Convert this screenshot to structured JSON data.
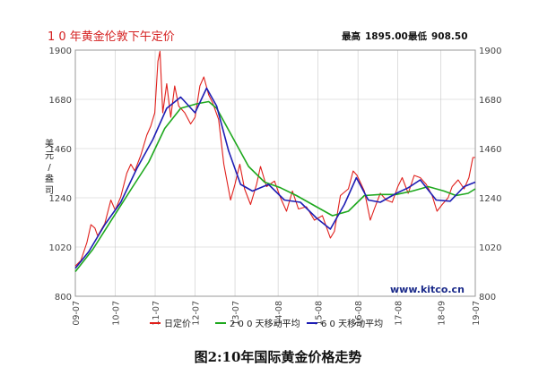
{
  "caption": "图2:10年国际黄金价格走势",
  "chart_data": {
    "type": "line",
    "title": "1 0 年黄金伦敦下午定价",
    "stats": {
      "high_label": "最高",
      "high_value": "1895.00",
      "low_label": "最低",
      "low_value": "908.50"
    },
    "ylabel": "美元/盎司",
    "watermark": "www.kitco.cn",
    "ylim": [
      800,
      1900
    ],
    "y_ticks": [
      800,
      1020,
      1240,
      1460,
      1680,
      1900
    ],
    "xlim": [
      2009.56,
      2019.58
    ],
    "x_tick_labels": [
      "09-07",
      "10-07",
      "11-07",
      "12-07",
      "13-07",
      "14-08",
      "15-08",
      "16-08",
      "17-08",
      "18-09",
      "19-07"
    ],
    "x_tick_positions": [
      2009.56,
      2010.56,
      2011.56,
      2012.56,
      2013.56,
      2014.64,
      2015.64,
      2016.64,
      2017.64,
      2018.72,
      2019.58
    ],
    "grid": true,
    "legend_position": "bottom",
    "series": [
      {
        "name": "日定价",
        "color": "#e0201c",
        "points": [
          [
            2009.56,
            935
          ],
          [
            2009.7,
            960
          ],
          [
            2009.85,
            1040
          ],
          [
            2009.95,
            1120
          ],
          [
            2010.05,
            1105
          ],
          [
            2010.12,
            1070
          ],
          [
            2010.3,
            1125
          ],
          [
            2010.45,
            1230
          ],
          [
            2010.56,
            1185
          ],
          [
            2010.7,
            1245
          ],
          [
            2010.85,
            1350
          ],
          [
            2010.95,
            1390
          ],
          [
            2011.05,
            1360
          ],
          [
            2011.2,
            1430
          ],
          [
            2011.35,
            1520
          ],
          [
            2011.45,
            1560
          ],
          [
            2011.55,
            1620
          ],
          [
            2011.63,
            1850
          ],
          [
            2011.68,
            1895
          ],
          [
            2011.75,
            1620
          ],
          [
            2011.85,
            1750
          ],
          [
            2011.95,
            1600
          ],
          [
            2012.05,
            1740
          ],
          [
            2012.15,
            1650
          ],
          [
            2012.3,
            1620
          ],
          [
            2012.45,
            1570
          ],
          [
            2012.56,
            1600
          ],
          [
            2012.68,
            1740
          ],
          [
            2012.78,
            1780
          ],
          [
            2012.9,
            1700
          ],
          [
            2013.0,
            1665
          ],
          [
            2013.15,
            1590
          ],
          [
            2013.28,
            1390
          ],
          [
            2013.45,
            1230
          ],
          [
            2013.56,
            1300
          ],
          [
            2013.68,
            1390
          ],
          [
            2013.8,
            1280
          ],
          [
            2013.95,
            1210
          ],
          [
            2014.1,
            1300
          ],
          [
            2014.2,
            1380
          ],
          [
            2014.35,
            1290
          ],
          [
            2014.55,
            1315
          ],
          [
            2014.7,
            1240
          ],
          [
            2014.85,
            1180
          ],
          [
            2015.0,
            1270
          ],
          [
            2015.15,
            1190
          ],
          [
            2015.35,
            1200
          ],
          [
            2015.55,
            1140
          ],
          [
            2015.75,
            1160
          ],
          [
            2015.95,
            1060
          ],
          [
            2016.05,
            1090
          ],
          [
            2016.2,
            1250
          ],
          [
            2016.4,
            1280
          ],
          [
            2016.52,
            1360
          ],
          [
            2016.62,
            1340
          ],
          [
            2016.8,
            1270
          ],
          [
            2016.95,
            1140
          ],
          [
            2017.05,
            1190
          ],
          [
            2017.2,
            1260
          ],
          [
            2017.35,
            1230
          ],
          [
            2017.5,
            1220
          ],
          [
            2017.64,
            1290
          ],
          [
            2017.75,
            1330
          ],
          [
            2017.9,
            1260
          ],
          [
            2018.05,
            1340
          ],
          [
            2018.2,
            1330
          ],
          [
            2018.35,
            1300
          ],
          [
            2018.5,
            1250
          ],
          [
            2018.62,
            1180
          ],
          [
            2018.75,
            1210
          ],
          [
            2018.9,
            1240
          ],
          [
            2019.0,
            1290
          ],
          [
            2019.15,
            1320
          ],
          [
            2019.3,
            1280
          ],
          [
            2019.42,
            1330
          ],
          [
            2019.52,
            1420
          ],
          [
            2019.58,
            1420
          ]
        ]
      },
      {
        "name": "2 0 0 天移动平均",
        "color": "#1ea81e",
        "points": [
          [
            2009.56,
            910
          ],
          [
            2010.0,
            1010
          ],
          [
            2010.5,
            1150
          ],
          [
            2011.0,
            1290
          ],
          [
            2011.4,
            1400
          ],
          [
            2011.8,
            1550
          ],
          [
            2012.2,
            1640
          ],
          [
            2012.6,
            1660
          ],
          [
            2012.9,
            1670
          ],
          [
            2013.1,
            1640
          ],
          [
            2013.5,
            1510
          ],
          [
            2013.9,
            1380
          ],
          [
            2014.3,
            1310
          ],
          [
            2014.7,
            1285
          ],
          [
            2015.1,
            1250
          ],
          [
            2015.6,
            1200
          ],
          [
            2016.0,
            1160
          ],
          [
            2016.4,
            1180
          ],
          [
            2016.8,
            1250
          ],
          [
            2017.2,
            1255
          ],
          [
            2017.6,
            1255
          ],
          [
            2018.0,
            1270
          ],
          [
            2018.4,
            1290
          ],
          [
            2018.8,
            1270
          ],
          [
            2019.1,
            1250
          ],
          [
            2019.4,
            1260
          ],
          [
            2019.58,
            1280
          ]
        ]
      },
      {
        "name": "6 0 天移动平均",
        "color": "#1e1eb4",
        "points": [
          [
            2009.56,
            925
          ],
          [
            2009.9,
            1000
          ],
          [
            2010.3,
            1120
          ],
          [
            2010.7,
            1220
          ],
          [
            2011.1,
            1370
          ],
          [
            2011.5,
            1500
          ],
          [
            2011.85,
            1640
          ],
          [
            2012.2,
            1690
          ],
          [
            2012.56,
            1620
          ],
          [
            2012.85,
            1730
          ],
          [
            2013.1,
            1650
          ],
          [
            2013.4,
            1450
          ],
          [
            2013.7,
            1300
          ],
          [
            2014.0,
            1270
          ],
          [
            2014.4,
            1300
          ],
          [
            2014.8,
            1230
          ],
          [
            2015.2,
            1220
          ],
          [
            2015.6,
            1150
          ],
          [
            2015.95,
            1100
          ],
          [
            2016.3,
            1210
          ],
          [
            2016.6,
            1330
          ],
          [
            2016.9,
            1230
          ],
          [
            2017.2,
            1220
          ],
          [
            2017.6,
            1260
          ],
          [
            2017.9,
            1285
          ],
          [
            2018.2,
            1320
          ],
          [
            2018.6,
            1230
          ],
          [
            2018.95,
            1225
          ],
          [
            2019.3,
            1290
          ],
          [
            2019.58,
            1310
          ]
        ]
      }
    ]
  }
}
